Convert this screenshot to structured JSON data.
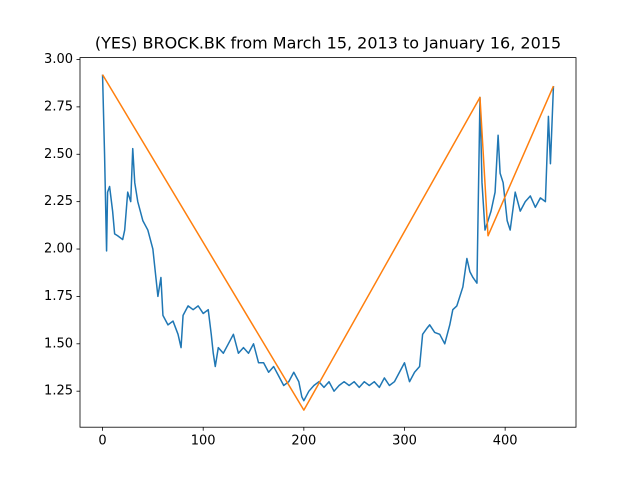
{
  "chart_data": {
    "type": "line",
    "title": "(YES) BROCK.BK from March 15, 2013 to January 16, 2015",
    "xlim": [
      -22.4,
      470.4
    ],
    "ylim": [
      1.06,
      3.01
    ],
    "xticks": [
      0,
      100,
      200,
      300,
      400
    ],
    "yticks": [
      1.25,
      {
        "value": 1.5,
        "label": "1.50"
      },
      1.75,
      {
        "value": 2.0,
        "label": "2.00"
      },
      2.25,
      {
        "value": 2.5,
        "label": "2.50"
      },
      2.75,
      {
        "value": 3.0,
        "label": "3.00"
      }
    ],
    "series": [
      {
        "color": "#1f77b4",
        "x": [
          0,
          2,
          4,
          5,
          7,
          10,
          12,
          15,
          20,
          22,
          25,
          28,
          30,
          32,
          35,
          40,
          45,
          50,
          55,
          58,
          60,
          65,
          70,
          75,
          78,
          80,
          85,
          90,
          95,
          100,
          105,
          108,
          110,
          112,
          115,
          120,
          125,
          130,
          135,
          140,
          145,
          150,
          155,
          160,
          165,
          170,
          175,
          180,
          185,
          190,
          195,
          198,
          200,
          205,
          210,
          215,
          220,
          225,
          230,
          235,
          240,
          245,
          250,
          255,
          260,
          265,
          270,
          275,
          280,
          285,
          290,
          295,
          300,
          305,
          310,
          315,
          318,
          322,
          325,
          330,
          335,
          340,
          345,
          348,
          352,
          355,
          358,
          362,
          365,
          368,
          372,
          375,
          377,
          380,
          383,
          386,
          390,
          393,
          395,
          398,
          402,
          405,
          410,
          415,
          420,
          425,
          430,
          435,
          440,
          443,
          445,
          448
        ],
        "values": [
          2.92,
          2.5,
          1.99,
          2.3,
          2.33,
          2.2,
          2.08,
          2.07,
          2.05,
          2.1,
          2.3,
          2.25,
          2.53,
          2.35,
          2.25,
          2.15,
          2.1,
          2.0,
          1.75,
          1.85,
          1.65,
          1.6,
          1.62,
          1.55,
          1.48,
          1.65,
          1.7,
          1.68,
          1.7,
          1.66,
          1.68,
          1.55,
          1.45,
          1.38,
          1.48,
          1.45,
          1.5,
          1.55,
          1.45,
          1.48,
          1.45,
          1.5,
          1.4,
          1.4,
          1.35,
          1.38,
          1.33,
          1.28,
          1.3,
          1.35,
          1.3,
          1.22,
          1.2,
          1.25,
          1.28,
          1.3,
          1.27,
          1.3,
          1.25,
          1.28,
          1.3,
          1.28,
          1.3,
          1.27,
          1.3,
          1.28,
          1.3,
          1.27,
          1.32,
          1.28,
          1.3,
          1.35,
          1.4,
          1.3,
          1.35,
          1.38,
          1.55,
          1.58,
          1.6,
          1.56,
          1.55,
          1.5,
          1.6,
          1.68,
          1.7,
          1.75,
          1.8,
          1.95,
          1.88,
          1.85,
          1.82,
          2.8,
          2.35,
          2.1,
          2.15,
          2.2,
          2.3,
          2.6,
          2.4,
          2.35,
          2.15,
          2.1,
          2.3,
          2.2,
          2.25,
          2.28,
          2.22,
          2.27,
          2.25,
          2.7,
          2.45,
          2.86
        ]
      },
      {
        "color": "#ff7f0e",
        "x": [
          0,
          200,
          375,
          383,
          448
        ],
        "values": [
          2.92,
          1.15,
          2.8,
          2.07,
          2.86
        ]
      }
    ]
  }
}
